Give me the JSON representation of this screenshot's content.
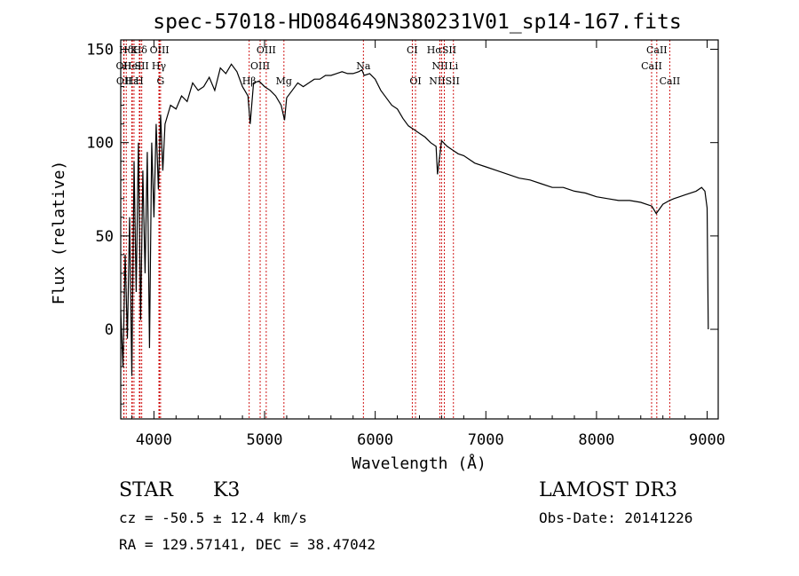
{
  "chart_data": {
    "type": "line",
    "title": "spec-57018-HD084649N380231V01_sp14-167.fits",
    "xlabel": "Wavelength (Å)",
    "ylabel": "Flux (relative)",
    "xlim": [
      3700,
      9100
    ],
    "ylim": [
      -48,
      155
    ],
    "x_ticks": [
      4000,
      5000,
      6000,
      7000,
      8000,
      9000
    ],
    "y_ticks": [
      0,
      50,
      100,
      150
    ],
    "grid": false,
    "series": [
      {
        "x": [
          3700,
          3720,
          3740,
          3760,
          3780,
          3800,
          3820,
          3840,
          3860,
          3880,
          3900,
          3920,
          3940,
          3960,
          3980,
          4000,
          4020,
          4040,
          4060,
          4080,
          4100,
          4150,
          4200,
          4250,
          4300,
          4350,
          4400,
          4450,
          4500,
          4550,
          4600,
          4650,
          4700,
          4750,
          4800,
          4850,
          4870,
          4900,
          4950,
          5000,
          5050,
          5100,
          5150,
          5180,
          5200,
          5250,
          5300,
          5350,
          5400,
          5450,
          5500,
          5550,
          5600,
          5650,
          5700,
          5750,
          5800,
          5850,
          5880,
          5900,
          5950,
          6000,
          6050,
          6100,
          6150,
          6200,
          6250,
          6300,
          6350,
          6400,
          6450,
          6500,
          6550,
          6563,
          6600,
          6650,
          6700,
          6750,
          6800,
          6900,
          7000,
          7100,
          7200,
          7300,
          7400,
          7500,
          7600,
          7700,
          7800,
          7900,
          8000,
          8100,
          8200,
          8300,
          8400,
          8500,
          8540,
          8600,
          8660,
          8700,
          8800,
          8900,
          8950,
          8980,
          9000,
          9010
        ],
        "y": [
          10,
          -20,
          40,
          -5,
          60,
          -25,
          90,
          20,
          100,
          5,
          85,
          30,
          95,
          -10,
          100,
          60,
          110,
          75,
          115,
          85,
          110,
          120,
          118,
          125,
          122,
          132,
          128,
          130,
          135,
          128,
          140,
          137,
          142,
          138,
          130,
          125,
          110,
          132,
          133,
          130,
          128,
          125,
          120,
          112,
          124,
          128,
          132,
          130,
          132,
          134,
          134,
          136,
          136,
          137,
          138,
          137,
          137,
          138,
          139,
          136,
          137,
          134,
          128,
          124,
          120,
          118,
          113,
          109,
          107,
          105,
          103,
          100,
          98,
          83,
          101,
          98,
          96,
          94,
          93,
          89,
          87,
          85,
          83,
          81,
          80,
          78,
          76,
          76,
          74,
          73,
          71,
          70,
          69,
          69,
          68,
          66,
          62,
          67,
          69,
          70,
          72,
          74,
          76,
          74,
          65,
          0
        ]
      }
    ],
    "emission_lines": [
      {
        "name": "Hδ",
        "x": 3750,
        "row": 0
      },
      {
        "name": "K",
        "x": 3820,
        "row": 0
      },
      {
        "name": "Hδ",
        "x": 3875,
        "row": 0
      },
      {
        "name": "OIII",
        "x": 4050,
        "row": 0
      },
      {
        "name": "OIII",
        "x": 5015,
        "row": 0
      },
      {
        "name": "CI",
        "x": 6335,
        "row": 0
      },
      {
        "name": "HαSII",
        "x": 6600,
        "row": 0
      },
      {
        "name": "CaII",
        "x": 8545,
        "row": 0
      },
      {
        "name": "OII",
        "x": 3727,
        "row": 1
      },
      {
        "name": "HeI",
        "x": 3805,
        "row": 1
      },
      {
        "name": "SII",
        "x": 3890,
        "row": 1
      },
      {
        "name": "Hγ",
        "x": 4045,
        "row": 1
      },
      {
        "name": "OIII",
        "x": 4960,
        "row": 1
      },
      {
        "name": "Na",
        "x": 5893,
        "row": 1
      },
      {
        "name": "NII",
        "x": 6585,
        "row": 1
      },
      {
        "name": "Li",
        "x": 6707,
        "row": 1
      },
      {
        "name": "CaII",
        "x": 8498,
        "row": 1
      },
      {
        "name": "OII",
        "x": 3730,
        "row": 2
      },
      {
        "name": "Hε",
        "x": 3800,
        "row": 2
      },
      {
        "name": "H",
        "x": 3868,
        "row": 2
      },
      {
        "name": "G",
        "x": 4060,
        "row": 2
      },
      {
        "name": "Hβ",
        "x": 4861,
        "row": 2
      },
      {
        "name": "Mg",
        "x": 5175,
        "row": 2
      },
      {
        "name": "OI",
        "x": 6364,
        "row": 2
      },
      {
        "name": "NIISII",
        "x": 6625,
        "row": 2
      },
      {
        "name": "CaII",
        "x": 8662,
        "row": 2
      }
    ],
    "line_color": "#000000",
    "marker_color": "#cc0000"
  },
  "footer": {
    "object_class": "STAR",
    "subclass": "K3",
    "survey": "LAMOST DR3",
    "cz": "cz = -50.5 ± 12.4 km/s",
    "obs_date": "Obs-Date: 20141226",
    "coords": "RA = 129.57141, DEC =  38.47042"
  }
}
